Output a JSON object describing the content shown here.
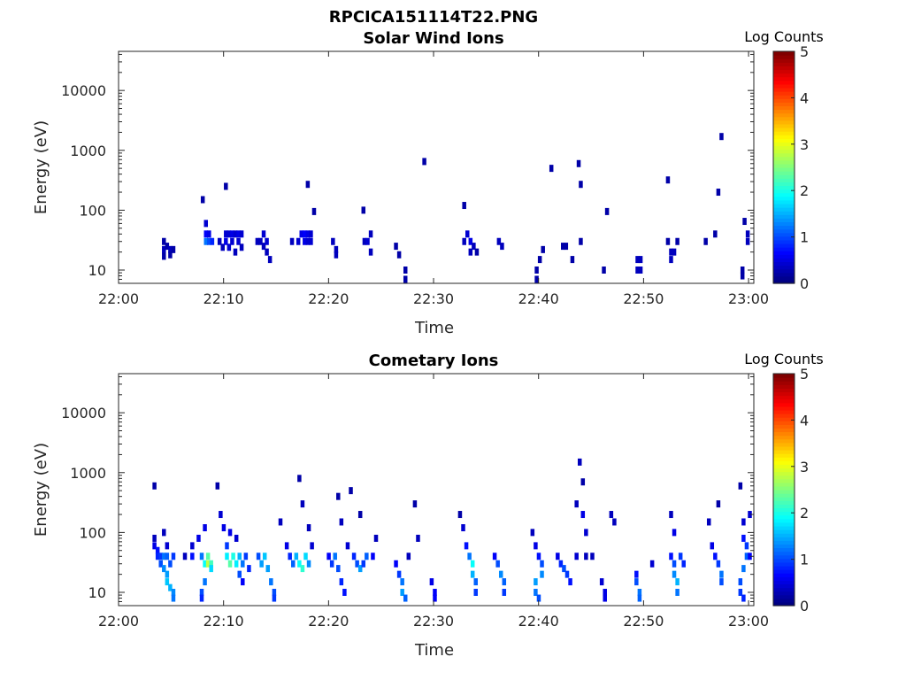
{
  "figure": {
    "title": "RPCICA151114T22.PNG"
  },
  "colors": {
    "axis": "#262626",
    "colormap": "jet"
  },
  "chart_data": [
    {
      "type": "heatmap",
      "title": "Solar Wind Ions",
      "xlabel": "Time",
      "ylabel": "Energy (eV)",
      "x_ticks": [
        "22:00",
        "22:10",
        "22:20",
        "22:30",
        "22:40",
        "22:50",
        "23:00"
      ],
      "x_range_minutes": [
        0,
        60.5
      ],
      "y_ticks": [
        "10",
        "100",
        "1000",
        "10000"
      ],
      "y_tick_values": [
        10,
        100,
        1000,
        10000
      ],
      "y_scale": "log",
      "ylim": [
        6,
        45000
      ],
      "colorbar": {
        "label": "Log Counts",
        "ticks": [
          "0",
          "1",
          "2",
          "3",
          "4",
          "5"
        ],
        "range": [
          0,
          5
        ]
      },
      "cells_minute_energy_logcounts": [
        [
          4.3,
          30,
          0.2
        ],
        [
          4.3,
          22,
          0.3
        ],
        [
          4.3,
          17,
          0.2
        ],
        [
          4.6,
          25,
          0.2
        ],
        [
          4.9,
          22,
          0.3
        ],
        [
          4.9,
          18,
          0.2
        ],
        [
          5.2,
          22,
          0.2
        ],
        [
          8.0,
          150,
          0.2
        ],
        [
          8.3,
          60,
          0.4
        ],
        [
          8.3,
          40,
          0.6
        ],
        [
          8.3,
          30,
          1.2
        ],
        [
          8.6,
          30,
          1.0
        ],
        [
          8.6,
          40,
          0.5
        ],
        [
          8.9,
          30,
          0.8
        ],
        [
          9.6,
          30,
          0.3
        ],
        [
          9.9,
          24,
          0.3
        ],
        [
          10.2,
          250,
          0.2
        ],
        [
          10.2,
          40,
          0.4
        ],
        [
          10.2,
          30,
          0.5
        ],
        [
          10.5,
          40,
          0.4
        ],
        [
          10.5,
          24,
          0.4
        ],
        [
          10.8,
          40,
          0.5
        ],
        [
          10.8,
          30,
          0.4
        ],
        [
          11.1,
          40,
          0.4
        ],
        [
          11.1,
          20,
          0.3
        ],
        [
          11.4,
          40,
          0.5
        ],
        [
          11.4,
          30,
          0.4
        ],
        [
          11.7,
          40,
          0.4
        ],
        [
          11.7,
          24,
          0.3
        ],
        [
          13.2,
          30,
          0.3
        ],
        [
          13.5,
          30,
          0.3
        ],
        [
          13.8,
          40,
          0.4
        ],
        [
          13.8,
          25,
          0.3
        ],
        [
          14.1,
          30,
          0.4
        ],
        [
          14.1,
          20,
          0.3
        ],
        [
          14.4,
          15,
          0.3
        ],
        [
          16.5,
          30,
          0.3
        ],
        [
          17.1,
          30,
          0.4
        ],
        [
          17.4,
          40,
          0.5
        ],
        [
          17.7,
          40,
          0.6
        ],
        [
          17.7,
          30,
          0.5
        ],
        [
          18.0,
          40,
          0.5
        ],
        [
          18.0,
          30,
          0.4
        ],
        [
          18.0,
          270,
          0.2
        ],
        [
          18.3,
          40,
          0.4
        ],
        [
          18.3,
          30,
          0.4
        ],
        [
          18.6,
          95,
          0.2
        ],
        [
          20.4,
          30,
          0.3
        ],
        [
          20.7,
          22,
          0.3
        ],
        [
          20.7,
          18,
          0.3
        ],
        [
          23.3,
          100,
          0.2
        ],
        [
          23.4,
          30,
          0.3
        ],
        [
          23.7,
          30,
          0.4
        ],
        [
          24.0,
          40,
          0.3
        ],
        [
          24.0,
          20,
          0.3
        ],
        [
          26.4,
          25,
          0.2
        ],
        [
          26.7,
          18,
          0.2
        ],
        [
          27.3,
          10,
          0.2
        ],
        [
          27.3,
          7,
          0.2
        ],
        [
          29.1,
          650,
          0.2
        ],
        [
          32.9,
          120,
          0.2
        ],
        [
          32.9,
          30,
          0.3
        ],
        [
          33.2,
          40,
          0.4
        ],
        [
          33.5,
          30,
          0.5
        ],
        [
          33.5,
          20,
          0.3
        ],
        [
          33.8,
          25,
          0.3
        ],
        [
          34.1,
          20,
          0.2
        ],
        [
          36.2,
          30,
          0.3
        ],
        [
          36.5,
          25,
          0.3
        ],
        [
          39.8,
          10,
          0.2
        ],
        [
          39.8,
          7,
          0.2
        ],
        [
          40.1,
          15,
          0.2
        ],
        [
          40.4,
          22,
          0.2
        ],
        [
          41.2,
          500,
          0.2
        ],
        [
          42.3,
          25,
          0.2
        ],
        [
          42.6,
          25,
          0.2
        ],
        [
          43.2,
          15,
          0.2
        ],
        [
          43.8,
          600,
          0.2
        ],
        [
          44.0,
          270,
          0.2
        ],
        [
          44.0,
          30,
          0.2
        ],
        [
          46.5,
          95,
          0.2
        ],
        [
          46.2,
          10,
          0.2
        ],
        [
          49.4,
          15,
          0.3
        ],
        [
          49.4,
          10,
          0.3
        ],
        [
          49.7,
          15,
          0.3
        ],
        [
          49.7,
          10,
          0.3
        ],
        [
          52.3,
          320,
          0.2
        ],
        [
          52.3,
          30,
          0.2
        ],
        [
          52.6,
          20,
          0.3
        ],
        [
          52.6,
          15,
          0.3
        ],
        [
          52.9,
          20,
          0.3
        ],
        [
          53.2,
          30,
          0.2
        ],
        [
          55.9,
          30,
          0.2
        ],
        [
          56.8,
          40,
          0.2
        ],
        [
          57.1,
          200,
          0.2
        ],
        [
          57.4,
          1700,
          0.2
        ],
        [
          59.4,
          10,
          0.2
        ],
        [
          59.4,
          8,
          0.2
        ],
        [
          59.6,
          65,
          0.2
        ],
        [
          59.9,
          40,
          0.3
        ],
        [
          59.9,
          30,
          0.3
        ]
      ]
    },
    {
      "type": "heatmap",
      "title": "Cometary Ions",
      "xlabel": "Time",
      "ylabel": "Energy (eV)",
      "x_ticks": [
        "22:00",
        "22:10",
        "22:20",
        "22:30",
        "22:40",
        "22:50",
        "23:00"
      ],
      "x_range_minutes": [
        0,
        60.5
      ],
      "y_ticks": [
        "10",
        "100",
        "1000",
        "10000"
      ],
      "y_tick_values": [
        10,
        100,
        1000,
        10000
      ],
      "y_scale": "log",
      "ylim": [
        6,
        45000
      ],
      "colorbar": {
        "label": "Log Counts",
        "ticks": [
          "0",
          "1",
          "2",
          "3",
          "4",
          "5"
        ],
        "range": [
          0,
          5
        ]
      },
      "cells_minute_energy_logcounts": [
        [
          3.4,
          600,
          0.2
        ],
        [
          3.4,
          80,
          0.3
        ],
        [
          3.4,
          60,
          0.5
        ],
        [
          3.7,
          50,
          0.7
        ],
        [
          3.7,
          40,
          0.8
        ],
        [
          4.0,
          40,
          0.9
        ],
        [
          4.0,
          30,
          1.0
        ],
        [
          4.3,
          40,
          1.2
        ],
        [
          4.3,
          25,
          1.3
        ],
        [
          4.6,
          40,
          1.1
        ],
        [
          4.6,
          20,
          1.4
        ],
        [
          4.6,
          15,
          1.6
        ],
        [
          4.9,
          30,
          1.0
        ],
        [
          4.9,
          12,
          1.5
        ],
        [
          5.2,
          40,
          0.9
        ],
        [
          5.2,
          10,
          1.3
        ],
        [
          5.2,
          8,
          1.2
        ],
        [
          4.3,
          100,
          0.3
        ],
        [
          4.6,
          60,
          0.4
        ],
        [
          6.3,
          40,
          0.3
        ],
        [
          7.0,
          60,
          0.4
        ],
        [
          7.0,
          40,
          0.7
        ],
        [
          7.6,
          80,
          0.5
        ],
        [
          7.9,
          40,
          1.2
        ],
        [
          8.2,
          120,
          0.5
        ],
        [
          8.2,
          30,
          1.9
        ],
        [
          8.5,
          40,
          2.3
        ],
        [
          8.5,
          30,
          2.8
        ],
        [
          8.8,
          30,
          2.2
        ],
        [
          8.8,
          25,
          1.7
        ],
        [
          8.2,
          15,
          1.2
        ],
        [
          7.9,
          10,
          1.0
        ],
        [
          7.9,
          8,
          0.8
        ],
        [
          9.4,
          600,
          0.2
        ],
        [
          9.7,
          200,
          0.4
        ],
        [
          10.0,
          120,
          0.5
        ],
        [
          10.3,
          60,
          0.9
        ],
        [
          10.3,
          40,
          1.8
        ],
        [
          10.6,
          30,
          2.3
        ],
        [
          10.9,
          40,
          2.0
        ],
        [
          11.2,
          30,
          1.8
        ],
        [
          11.5,
          40,
          1.5
        ],
        [
          11.5,
          20,
          1.0
        ],
        [
          11.8,
          30,
          1.2
        ],
        [
          12.1,
          40,
          0.9
        ],
        [
          12.4,
          25,
          0.8
        ],
        [
          10.6,
          100,
          0.5
        ],
        [
          11.2,
          80,
          0.4
        ],
        [
          11.8,
          15,
          0.6
        ],
        [
          13.3,
          40,
          1.0
        ],
        [
          13.6,
          30,
          1.4
        ],
        [
          13.9,
          40,
          1.6
        ],
        [
          14.2,
          25,
          1.4
        ],
        [
          14.5,
          15,
          1.2
        ],
        [
          14.8,
          10,
          1.0
        ],
        [
          14.8,
          8,
          0.9
        ],
        [
          15.4,
          150,
          0.3
        ],
        [
          16.0,
          60,
          0.5
        ],
        [
          16.3,
          40,
          0.8
        ],
        [
          16.6,
          30,
          1.1
        ],
        [
          16.9,
          40,
          1.5
        ],
        [
          17.2,
          30,
          1.9
        ],
        [
          17.5,
          25,
          2.1
        ],
        [
          17.8,
          40,
          1.7
        ],
        [
          18.1,
          30,
          1.3
        ],
        [
          17.2,
          800,
          0.2
        ],
        [
          17.5,
          300,
          0.3
        ],
        [
          18.1,
          120,
          0.3
        ],
        [
          18.4,
          60,
          0.4
        ],
        [
          20.0,
          40,
          0.6
        ],
        [
          20.3,
          30,
          0.9
        ],
        [
          20.6,
          40,
          1.2
        ],
        [
          20.9,
          25,
          1.0
        ],
        [
          21.2,
          15,
          0.8
        ],
        [
          21.5,
          10,
          0.7
        ],
        [
          20.9,
          400,
          0.2
        ],
        [
          21.2,
          150,
          0.3
        ],
        [
          21.8,
          60,
          0.4
        ],
        [
          22.4,
          40,
          0.8
        ],
        [
          22.7,
          30,
          1.0
        ],
        [
          23.0,
          25,
          1.4
        ],
        [
          23.3,
          30,
          0.9
        ],
        [
          23.6,
          40,
          1.1
        ],
        [
          24.2,
          40,
          0.6
        ],
        [
          22.1,
          500,
          0.2
        ],
        [
          23.0,
          200,
          0.2
        ],
        [
          24.5,
          80,
          0.3
        ],
        [
          26.4,
          30,
          0.6
        ],
        [
          26.7,
          20,
          0.9
        ],
        [
          27.0,
          15,
          1.2
        ],
        [
          27.0,
          10,
          1.4
        ],
        [
          27.3,
          8,
          1.1
        ],
        [
          27.6,
          40,
          0.3
        ],
        [
          28.2,
          300,
          0.2
        ],
        [
          28.5,
          80,
          0.3
        ],
        [
          29.8,
          15,
          0.5
        ],
        [
          30.1,
          10,
          0.6
        ],
        [
          30.1,
          8,
          0.6
        ],
        [
          32.5,
          200,
          0.2
        ],
        [
          32.8,
          120,
          0.4
        ],
        [
          33.1,
          60,
          0.7
        ],
        [
          33.4,
          40,
          1.2
        ],
        [
          33.7,
          30,
          1.9
        ],
        [
          33.7,
          20,
          1.5
        ],
        [
          34.0,
          15,
          1.1
        ],
        [
          34.0,
          10,
          0.9
        ],
        [
          35.8,
          40,
          0.6
        ],
        [
          36.1,
          30,
          1.0
        ],
        [
          36.4,
          20,
          1.3
        ],
        [
          36.7,
          15,
          1.1
        ],
        [
          36.7,
          10,
          0.9
        ],
        [
          39.4,
          100,
          0.3
        ],
        [
          39.7,
          60,
          0.5
        ],
        [
          40.0,
          40,
          0.7
        ],
        [
          40.3,
          30,
          1.0
        ],
        [
          40.3,
          20,
          1.3
        ],
        [
          39.7,
          15,
          1.4
        ],
        [
          39.7,
          10,
          1.2
        ],
        [
          40.0,
          8,
          1.0
        ],
        [
          41.8,
          40,
          0.5
        ],
        [
          42.1,
          30,
          0.8
        ],
        [
          42.4,
          25,
          1.0
        ],
        [
          42.7,
          20,
          0.9
        ],
        [
          43.0,
          15,
          0.7
        ],
        [
          43.6,
          40,
          0.4
        ],
        [
          43.6,
          300,
          0.3
        ],
        [
          43.9,
          1500,
          0.3
        ],
        [
          44.2,
          700,
          0.2
        ],
        [
          44.2,
          200,
          0.5
        ],
        [
          44.5,
          100,
          0.4
        ],
        [
          44.5,
          40,
          0.3
        ],
        [
          45.1,
          40,
          0.3
        ],
        [
          46.0,
          15,
          0.4
        ],
        [
          46.3,
          10,
          0.5
        ],
        [
          46.3,
          8,
          0.5
        ],
        [
          46.9,
          200,
          0.3
        ],
        [
          47.2,
          150,
          0.3
        ],
        [
          49.3,
          20,
          0.7
        ],
        [
          49.3,
          15,
          1.0
        ],
        [
          49.6,
          10,
          1.2
        ],
        [
          49.6,
          8,
          1.1
        ],
        [
          50.8,
          30,
          0.4
        ],
        [
          52.6,
          200,
          0.3
        ],
        [
          52.9,
          100,
          0.5
        ],
        [
          52.6,
          40,
          0.7
        ],
        [
          52.9,
          30,
          1.0
        ],
        [
          52.9,
          20,
          1.3
        ],
        [
          53.2,
          15,
          1.5
        ],
        [
          53.2,
          10,
          1.2
        ],
        [
          53.5,
          40,
          0.9
        ],
        [
          53.8,
          30,
          0.8
        ],
        [
          56.2,
          150,
          0.3
        ],
        [
          56.5,
          60,
          0.5
        ],
        [
          56.8,
          40,
          0.7
        ],
        [
          57.1,
          30,
          0.9
        ],
        [
          57.4,
          20,
          1.2
        ],
        [
          57.4,
          15,
          1.0
        ],
        [
          57.1,
          300,
          0.2
        ],
        [
          59.2,
          600,
          0.2
        ],
        [
          59.5,
          150,
          0.4
        ],
        [
          59.5,
          80,
          0.7
        ],
        [
          59.8,
          60,
          0.9
        ],
        [
          59.8,
          40,
          1.1
        ],
        [
          59.5,
          25,
          1.2
        ],
        [
          59.2,
          15,
          1.0
        ],
        [
          59.2,
          10,
          0.9
        ],
        [
          59.5,
          8,
          0.8
        ],
        [
          60.1,
          40,
          0.6
        ],
        [
          60.1,
          200,
          0.4
        ]
      ]
    }
  ]
}
